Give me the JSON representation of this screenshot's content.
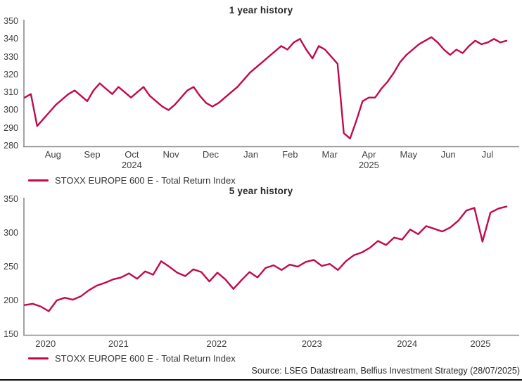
{
  "colors": {
    "line": "#C2094E",
    "axis": "#8C8C8C",
    "label": "#404040",
    "title": "#262626",
    "bottom_bar": "#06060F"
  },
  "source_text": "Source: LSEG Datastream, Belfius Investment Strategy (28/07/2025)",
  "chart_data": [
    {
      "type": "line",
      "title": "1 year history",
      "legend": "STOXX EUROPE 600 E - Total Return Index",
      "series_name": "STOXX EUROPE 600 E - Total Return Index",
      "ylim": [
        280,
        350
      ],
      "yticks": [
        280,
        290,
        300,
        310,
        320,
        330,
        340,
        350
      ],
      "grid": false,
      "legend_position": "bottom-left",
      "xticks": [
        {
          "label": "Aug",
          "f": 0.06
        },
        {
          "label": "Sep",
          "f": 0.139
        },
        {
          "label": "Oct",
          "f": 0.219
        },
        {
          "label": "Nov",
          "f": 0.298
        },
        {
          "label": "Dec",
          "f": 0.378
        },
        {
          "label": "Jan",
          "f": 0.459
        },
        {
          "label": "Feb",
          "f": 0.538
        },
        {
          "label": "Mar",
          "f": 0.618
        },
        {
          "label": "Apr",
          "f": 0.697
        },
        {
          "label": "May",
          "f": 0.777
        },
        {
          "label": "Jun",
          "f": 0.857
        },
        {
          "label": "Jul",
          "f": 0.936
        }
      ],
      "year_labels": [
        {
          "label": "2024",
          "f": 0.219
        },
        {
          "label": "2025",
          "f": 0.697
        }
      ],
      "values_sampling": "approx weekly, late Jul 2024 to late Jul 2025",
      "values": [
        307,
        309,
        291,
        295,
        299,
        303,
        306,
        309,
        311,
        308,
        305,
        311,
        315,
        312,
        309,
        313,
        310,
        307,
        310,
        313,
        308,
        305,
        302,
        300,
        303,
        307,
        311,
        313,
        308,
        304,
        302,
        304,
        307,
        310,
        313,
        317,
        321,
        324,
        327,
        330,
        333,
        336,
        334,
        338,
        340,
        334,
        329,
        336,
        334,
        330,
        326,
        287,
        284,
        294,
        305,
        307,
        307,
        312,
        316,
        321,
        327,
        331,
        334,
        337,
        339,
        341,
        338,
        334,
        331,
        334,
        332,
        336,
        339,
        337,
        338,
        340,
        338,
        339
      ]
    },
    {
      "type": "line",
      "title": "5 year history",
      "legend": "STOXX EUROPE 600 E - Total Return Index",
      "series_name": "STOXX EUROPE 600 E - Total Return Index",
      "ylim": [
        150,
        350
      ],
      "yticks": [
        150,
        200,
        250,
        300,
        350
      ],
      "grid": false,
      "legend_position": "bottom-left",
      "xticks": [
        {
          "label": "2020",
          "f": 0.045
        },
        {
          "label": "2021",
          "f": 0.192
        },
        {
          "label": "2022",
          "f": 0.39
        },
        {
          "label": "2023",
          "f": 0.582
        },
        {
          "label": "2024",
          "f": 0.774
        },
        {
          "label": "2025",
          "f": 0.922
        }
      ],
      "year_labels": [],
      "values_sampling": "approx monthly, Jul 2020 to Jul 2025",
      "values": [
        193,
        195,
        191,
        184,
        200,
        204,
        201,
        206,
        215,
        222,
        226,
        231,
        234,
        240,
        232,
        243,
        238,
        258,
        250,
        241,
        236,
        246,
        242,
        228,
        241,
        231,
        217,
        230,
        242,
        234,
        248,
        252,
        245,
        253,
        250,
        257,
        260,
        251,
        254,
        245,
        258,
        267,
        271,
        278,
        288,
        282,
        293,
        290,
        305,
        298,
        310,
        306,
        302,
        308,
        318,
        333,
        337,
        287,
        330,
        336,
        339
      ]
    }
  ]
}
